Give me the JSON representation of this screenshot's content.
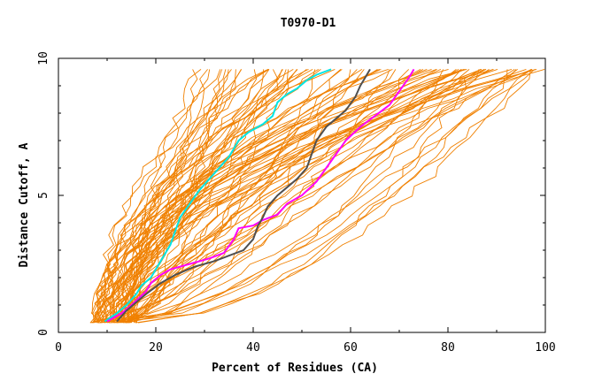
{
  "chart_data": {
    "type": "line",
    "title": "T0970-D1",
    "xlabel": "Percent of Residues (CA)",
    "ylabel": "Distance Cutoff, A",
    "xlim": [
      0,
      100
    ],
    "ylim": [
      0,
      10
    ],
    "x_ticks": [
      0,
      20,
      40,
      60,
      80,
      100
    ],
    "x_tick_labels": [
      "0",
      "20",
      "40",
      "60",
      "80",
      "100"
    ],
    "y_ticks": [
      0,
      5,
      10
    ],
    "y_tick_labels": [
      "0",
      "5",
      "10"
    ],
    "grid": false,
    "legend": "none",
    "highlighted_series": [
      {
        "color": "#00e5e5",
        "points": [
          [
            9.5,
            0.4
          ],
          [
            12,
            0.7
          ],
          [
            14,
            1.0
          ],
          [
            16,
            1.4
          ],
          [
            17,
            1.7
          ],
          [
            19,
            2.0
          ],
          [
            21,
            2.6
          ],
          [
            23,
            3.2
          ],
          [
            24,
            3.7
          ],
          [
            25,
            4.2
          ],
          [
            27,
            4.7
          ],
          [
            29,
            5.2
          ],
          [
            31,
            5.6
          ],
          [
            33,
            6.0
          ],
          [
            35,
            6.4
          ],
          [
            37,
            7.0
          ],
          [
            39,
            7.3
          ],
          [
            42,
            7.6
          ],
          [
            44,
            7.9
          ],
          [
            45,
            8.4
          ],
          [
            47,
            8.7
          ],
          [
            49,
            8.9
          ],
          [
            51,
            9.2
          ],
          [
            53,
            9.4
          ],
          [
            56,
            9.6
          ]
        ]
      },
      {
        "color": "#ff00ff",
        "points": [
          [
            10,
            0.4
          ],
          [
            13,
            0.7
          ],
          [
            15,
            1.0
          ],
          [
            18,
            1.5
          ],
          [
            19,
            1.8
          ],
          [
            21,
            2.1
          ],
          [
            23,
            2.3
          ],
          [
            27,
            2.5
          ],
          [
            31,
            2.7
          ],
          [
            34,
            2.9
          ],
          [
            36,
            3.4
          ],
          [
            37,
            3.8
          ],
          [
            40,
            3.9
          ],
          [
            42,
            4.1
          ],
          [
            45,
            4.3
          ],
          [
            47,
            4.7
          ],
          [
            50,
            5.0
          ],
          [
            53,
            5.5
          ],
          [
            55,
            6.0
          ],
          [
            57,
            6.5
          ],
          [
            59,
            7.0
          ],
          [
            62,
            7.5
          ],
          [
            65,
            7.9
          ],
          [
            68,
            8.3
          ],
          [
            70,
            8.8
          ],
          [
            72,
            9.3
          ],
          [
            73,
            9.6
          ]
        ]
      },
      {
        "color": "#505050",
        "points": [
          [
            12,
            0.4
          ],
          [
            14,
            0.8
          ],
          [
            16,
            1.1
          ],
          [
            18,
            1.4
          ],
          [
            21,
            1.8
          ],
          [
            24,
            2.1
          ],
          [
            28,
            2.4
          ],
          [
            32,
            2.6
          ],
          [
            35,
            2.8
          ],
          [
            38,
            3.0
          ],
          [
            40,
            3.4
          ],
          [
            41,
            3.9
          ],
          [
            42,
            4.2
          ],
          [
            43,
            4.6
          ],
          [
            45,
            5.0
          ],
          [
            47,
            5.3
          ],
          [
            49,
            5.6
          ],
          [
            51,
            6.0
          ],
          [
            52,
            6.5
          ],
          [
            53,
            7.0
          ],
          [
            55,
            7.5
          ],
          [
            57,
            7.8
          ],
          [
            59,
            8.1
          ],
          [
            61,
            8.6
          ],
          [
            62,
            9.0
          ],
          [
            63,
            9.3
          ],
          [
            64,
            9.6
          ]
        ]
      }
    ],
    "background_series_color": "#f08000",
    "background_series_count": 90
  }
}
